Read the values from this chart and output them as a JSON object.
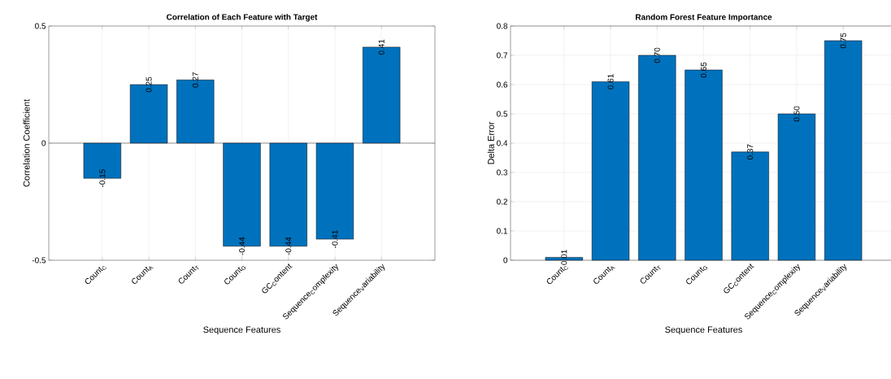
{
  "chart_data": [
    {
      "type": "bar",
      "title": "Correlation of Each Feature with Target",
      "xlabel": "Sequence Features",
      "ylabel": "Correlation Coefficient",
      "categories": [
        "Count$_{C}$",
        "Count$_{A}$",
        "Count$_{T}$",
        "Count$_{G}$",
        "GC$_{C}$ontent",
        "Sequence$_{C}$omplexity",
        "Sequence$_{V}$ariability"
      ],
      "values": [
        -0.15,
        0.25,
        0.27,
        -0.44,
        -0.44,
        -0.41,
        0.41
      ],
      "value_labels": [
        "-0.15",
        "0.25",
        "0.27",
        "-0.44",
        "-0.44",
        "-0.41",
        "0.41"
      ],
      "color": "#0072bd",
      "ylim": [
        -0.5,
        0.5
      ],
      "yticks": [
        -0.5,
        0,
        0.5
      ],
      "grid": "x",
      "ref_lines": [
        {
          "axis": "y",
          "value": 0,
          "color": "#8c8c8c"
        }
      ]
    },
    {
      "type": "bar",
      "title": "Random Forest Feature Importance",
      "xlabel": "Sequence Features",
      "ylabel": "Delta Error",
      "categories": [
        "Count$_{C}$",
        "Count$_{A}$",
        "Count$_{T}$",
        "Count$_{G}$",
        "GC$_{C}$ontent",
        "Sequence$_{C}$omplexity",
        "Sequence$_{V}$ariability"
      ],
      "values": [
        0.01,
        0.61,
        0.7,
        0.65,
        0.37,
        0.5,
        0.75
      ],
      "value_labels": [
        "0.01",
        "0.61",
        "0.70",
        "0.65",
        "0.37",
        "0.50",
        "0.75"
      ],
      "color": "#0072bd",
      "ylim": [
        0,
        0.8
      ],
      "yticks": [
        0,
        0.1,
        0.2,
        0.3,
        0.4,
        0.5,
        0.6,
        0.7,
        0.8
      ],
      "grid": true
    }
  ]
}
